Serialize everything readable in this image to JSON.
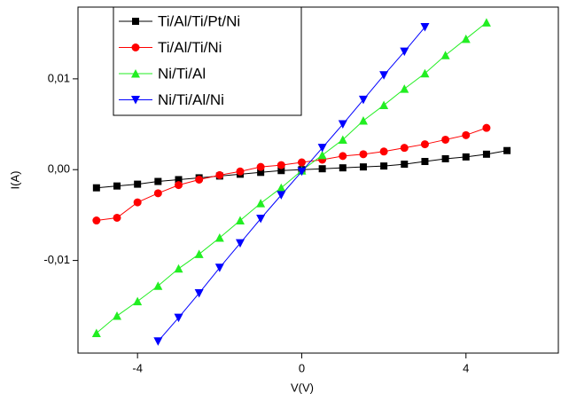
{
  "chart_data": {
    "type": "line",
    "x_label": "V(V)",
    "y_label": "I(A)",
    "x": [
      -5,
      -4.5,
      -4,
      -3.5,
      -3,
      -2.5,
      -2,
      -1.5,
      -1,
      -0.5,
      0,
      0.5,
      1,
      1.5,
      2,
      2.5,
      3,
      3.5,
      4,
      4.5,
      5
    ],
    "series": [
      {
        "name": "Ti/Al/Ti/Pt/Ni",
        "color": "#000000",
        "marker": "square",
        "values": [
          -0.002,
          -0.0018,
          -0.0016,
          -0.0013,
          -0.0011,
          -0.0009,
          -0.0007,
          -0.0005,
          -0.0003,
          -0.0001,
          0,
          0.0001,
          0.0002,
          0.0003,
          0.0004,
          0.0006,
          0.0009,
          0.0012,
          0.0014,
          0.0017,
          0.0021
        ]
      },
      {
        "name": "Ti/Al/Ti/Ni",
        "color": "#ff0000",
        "marker": "circle",
        "values": [
          -0.0056,
          -0.0053,
          -0.0036,
          -0.0026,
          -0.0017,
          -0.0011,
          -0.0006,
          -0.0002,
          0.0003,
          0.0005,
          0.0008,
          0.0011,
          0.0015,
          0.0017,
          0.002,
          0.0024,
          0.0028,
          0.0033,
          0.0038,
          0.0046,
          null
        ]
      },
      {
        "name": "Ni/Ti/Al",
        "color": "#22ee22",
        "marker": "triangle-up",
        "values": [
          -0.018,
          -0.0161,
          -0.0145,
          -0.0128,
          -0.0109,
          -0.0093,
          -0.0075,
          -0.0056,
          -0.0037,
          -0.002,
          -0.0001,
          0.0016,
          0.0033,
          0.0054,
          0.0071,
          0.0089,
          0.0106,
          0.0126,
          0.0144,
          0.0162,
          null
        ]
      },
      {
        "name": "Ni/Ti/Al/Ni",
        "color": "#0000ff",
        "marker": "triangle-down",
        "values": [
          null,
          null,
          null,
          -0.0189,
          -0.0163,
          -0.0136,
          -0.0108,
          -0.0081,
          -0.0054,
          -0.0028,
          -0.0002,
          0.0024,
          0.005,
          0.0077,
          0.0104,
          0.013,
          0.0157,
          null,
          null,
          null,
          null
        ]
      }
    ],
    "xlim": [
      -5.45,
      6.25
    ],
    "ylim": [
      -0.0202,
      0.0179
    ],
    "xticks": [
      -4,
      0,
      4
    ],
    "yticks": [
      {
        "value": -0.01,
        "label": "-0,01"
      },
      {
        "value": 0,
        "label": "0,00"
      },
      {
        "value": 0.01,
        "label": "0,01"
      }
    ],
    "legend": "upper left"
  }
}
